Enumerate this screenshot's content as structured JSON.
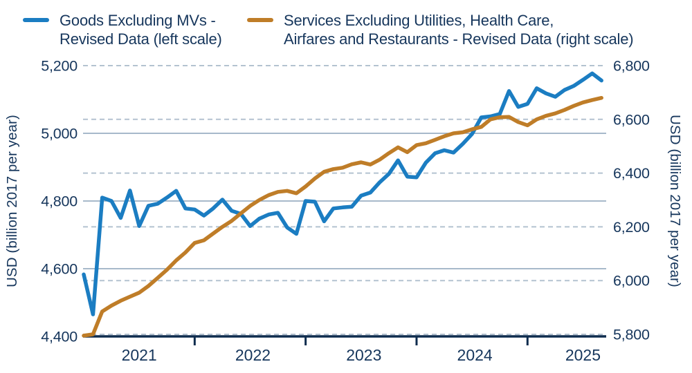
{
  "colors": {
    "background": "#ffffff",
    "text_navy": "#16365c",
    "blue_line": "#1b7dc2",
    "orange_line": "#bf7d28",
    "solid_gridline": "#8aa2b8",
    "dashed_gridline": "#b3c2d0",
    "axis_line": "#0e2c4e"
  },
  "legend": {
    "items": [
      {
        "id": "goods",
        "color": "#1b7dc2",
        "line1": "Goods Excluding MVs -",
        "line2": "Revised Data (left scale)"
      },
      {
        "id": "services",
        "color": "#bf7d28",
        "line1": "Services Excluding Utilities, Health Care,",
        "line2": "Airfares and Restaurants - Revised Data (right scale)"
      }
    ]
  },
  "axes": {
    "left": {
      "title": "USD (billion 2017 per year)",
      "tick_labels": [
        "5,200",
        "5,000",
        "4,800",
        "4,600",
        "4,400"
      ],
      "tick_values": [
        5200,
        5000,
        4800,
        4600,
        4400
      ]
    },
    "right": {
      "title": "USD (billion 2017 per year)",
      "tick_labels": [
        "6,800",
        "6,600",
        "6,400",
        "6,200",
        "6,000",
        "5,800"
      ],
      "tick_values": [
        6800,
        6600,
        6400,
        6200,
        6000,
        5800
      ]
    },
    "x": {
      "year_labels": [
        "2021",
        "2022",
        "2023",
        "2024",
        "2025"
      ],
      "year_label_indices": [
        6,
        18.3,
        30.3,
        42.3,
        54
      ],
      "year_tick_indices": [
        12,
        24,
        36,
        48
      ]
    }
  },
  "chart_data": {
    "type": "line",
    "title": "",
    "x_months": [
      "2021-01",
      "2021-02",
      "2021-03",
      "2021-04",
      "2021-05",
      "2021-06",
      "2021-07",
      "2021-08",
      "2021-09",
      "2021-10",
      "2021-11",
      "2021-12",
      "2022-01",
      "2022-02",
      "2022-03",
      "2022-04",
      "2022-05",
      "2022-06",
      "2022-07",
      "2022-08",
      "2022-09",
      "2022-10",
      "2022-11",
      "2022-12",
      "2023-01",
      "2023-02",
      "2023-03",
      "2023-04",
      "2023-05",
      "2023-06",
      "2023-07",
      "2023-08",
      "2023-09",
      "2023-10",
      "2023-11",
      "2023-12",
      "2024-01",
      "2024-02",
      "2024-03",
      "2024-04",
      "2024-05",
      "2024-06",
      "2024-07",
      "2024-08",
      "2024-09",
      "2024-10",
      "2024-11",
      "2024-12",
      "2025-01",
      "2025-02",
      "2025-03",
      "2025-04",
      "2025-05",
      "2025-06",
      "2025-07",
      "2025-08",
      "2025-09"
    ],
    "left_ylim": [
      4400,
      5200
    ],
    "right_ylim": [
      5800,
      6800
    ],
    "grid": {
      "solid_left_values": [
        4600,
        4800,
        5000
      ],
      "dashed_right_values": [
        5800,
        6000,
        6200,
        6400,
        6600,
        6800
      ]
    },
    "legend_position": "top",
    "series": [
      {
        "name": "Goods Excluding MVs - Revised Data (left scale)",
        "axis": "left",
        "color": "#1b7dc2",
        "values": [
          4583,
          4465,
          4810,
          4800,
          4750,
          4831,
          4726,
          4786,
          4792,
          4810,
          4830,
          4778,
          4775,
          4757,
          4778,
          4804,
          4771,
          4762,
          4726,
          4748,
          4760,
          4765,
          4722,
          4703,
          4800,
          4798,
          4740,
          4778,
          4781,
          4783,
          4816,
          4825,
          4855,
          4880,
          4920,
          4872,
          4870,
          4913,
          4941,
          4950,
          4943,
          4969,
          4998,
          5047,
          5050,
          5057,
          5125,
          5078,
          5087,
          5133,
          5118,
          5108,
          5128,
          5140,
          5158,
          5177,
          5156
        ]
      },
      {
        "name": "Services Excluding Utilities, Health Care, Airfares and Restaurants - Revised Data (right scale)",
        "axis": "right",
        "color": "#bf7d28",
        "values": [
          5795,
          5800,
          5885,
          5907,
          5925,
          5940,
          5955,
          5980,
          6010,
          6040,
          6075,
          6105,
          6140,
          6150,
          6175,
          6200,
          6222,
          6250,
          6278,
          6300,
          6318,
          6330,
          6334,
          6325,
          6350,
          6380,
          6405,
          6415,
          6420,
          6433,
          6440,
          6432,
          6450,
          6474,
          6496,
          6478,
          6504,
          6511,
          6524,
          6537,
          6548,
          6552,
          6563,
          6572,
          6600,
          6608,
          6609,
          6590,
          6578,
          6600,
          6613,
          6622,
          6635,
          6650,
          6663,
          6672,
          6680
        ]
      }
    ]
  }
}
